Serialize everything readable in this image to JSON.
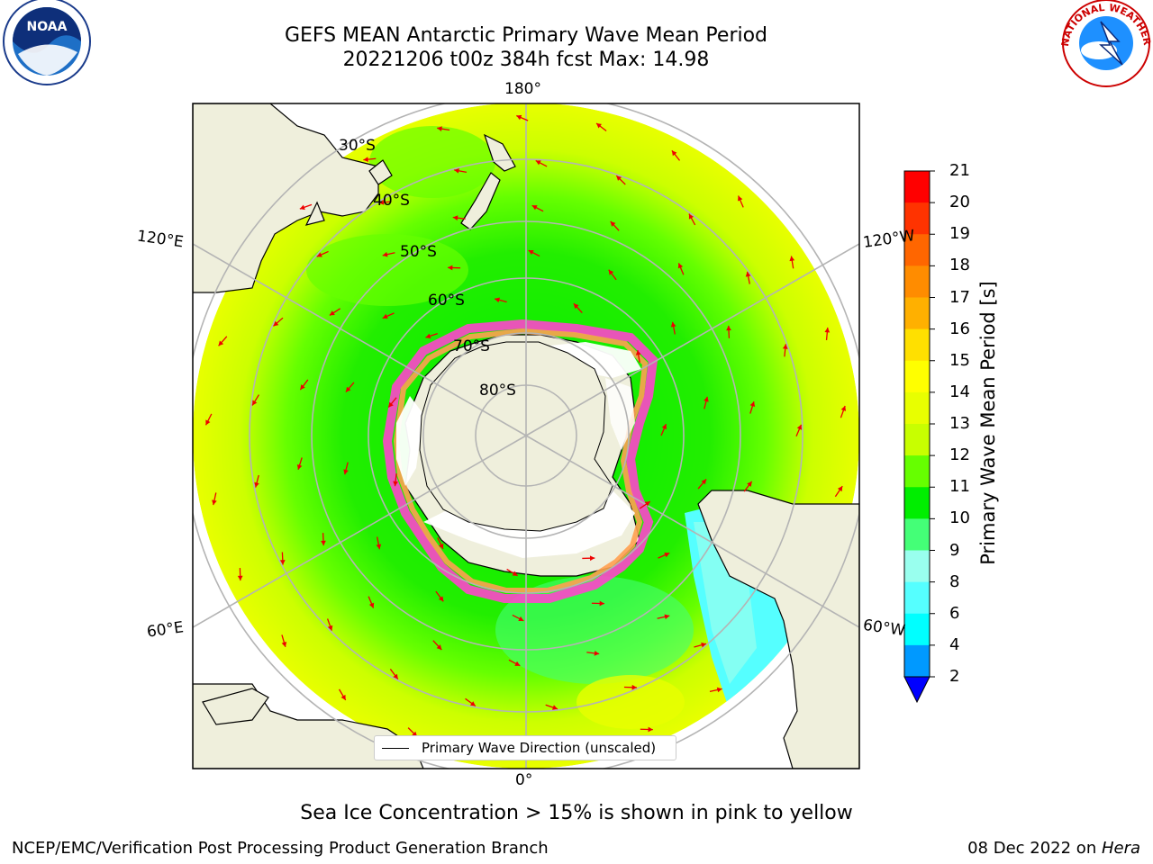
{
  "title": {
    "line1": "GEFS MEAN Antarctic Primary Wave Mean Period",
    "line2": "20221206 t00z 384h fcst   Max: 14.98"
  },
  "logos": {
    "noara": {
      "text": "NOAA",
      "icon": "noaa-logo-icon"
    },
    "nws": {
      "text": "NATIONAL WEATHER SERVICE",
      "icon": "nws-logo-icon"
    }
  },
  "map": {
    "projection": "south-polar-stereographic",
    "longitude_labels": {
      "top": "180°",
      "bottom": "0°",
      "upper_left": "120°E",
      "upper_right": "120°W",
      "lower_left": "60°E",
      "lower_right": "60°W"
    },
    "latitude_labels": [
      "30°S",
      "40°S",
      "50°S",
      "60°S",
      "70°S",
      "80°S"
    ],
    "land_color": "#efefdc",
    "ice_note_colors": [
      "#ff44cc",
      "#ffa050",
      "#ffffff"
    ]
  },
  "legend": {
    "label": "Primary Wave Direction (unscaled)"
  },
  "colorbar": {
    "label": "Primary Wave Mean Period [s]",
    "ticks": [
      "21",
      "20",
      "19",
      "18",
      "17",
      "16",
      "15",
      "14",
      "13",
      "12",
      "11",
      "10",
      "9",
      "8",
      "6",
      "4",
      "2"
    ],
    "colors": [
      "#ff0000",
      "#ff3300",
      "#ff6600",
      "#ff8c00",
      "#ffb000",
      "#ffe000",
      "#ffff00",
      "#e8ff00",
      "#c8ff00",
      "#66ff00",
      "#00ee00",
      "#44ff77",
      "#99ffee",
      "#55ffff",
      "#00ffff",
      "#0099ff"
    ],
    "under_color": "#0000ff"
  },
  "subtitle": "Sea Ice Concentration > 15% is shown in pink to yellow",
  "footer": {
    "left": "NCEP/EMC/Verification Post Processing Product Generation Branch",
    "right_date": "08 Dec 2022 on ",
    "right_host": "Hera"
  }
}
